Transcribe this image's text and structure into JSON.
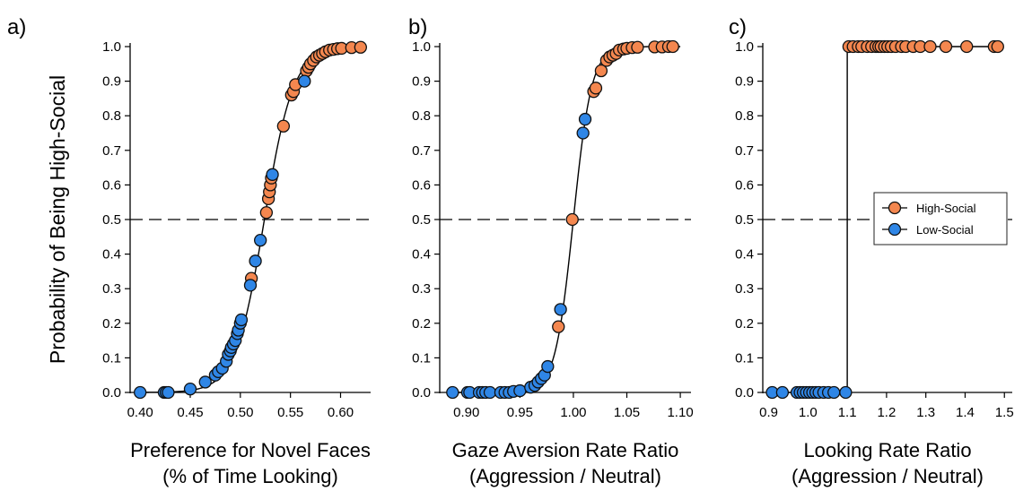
{
  "ylabel": "Probability of Being High-Social",
  "legend": {
    "placement": "right-middle of panel c",
    "items": [
      {
        "label": "High-Social",
        "color": "#F4874F"
      },
      {
        "label": "Low-Social",
        "color": "#2F86E6"
      }
    ]
  },
  "chart_data": [
    {
      "type": "scatter",
      "panel_label": "a)",
      "xlabel": [
        "Preference for Novel Faces",
        "(% of Time Looking)"
      ],
      "ylabel": "Probability of Being High-Social",
      "xlim": [
        0.39,
        0.63
      ],
      "ylim": [
        0,
        1
      ],
      "xticks": [
        "0.40",
        "0.45",
        "0.50",
        "0.55",
        "0.60"
      ],
      "yticks": [
        "0.0",
        "0.1",
        "0.2",
        "0.3",
        "0.4",
        "0.5",
        "0.6",
        "0.7",
        "0.8",
        "0.9",
        "1.0"
      ],
      "reference_line_y": 0.5,
      "curve": {
        "type": "logistic",
        "midpoint": 0.524,
        "slope": 0.0145,
        "x_range": [
          0.4,
          0.62
        ]
      },
      "series": [
        {
          "name": "High-Social",
          "color": "#F4874F",
          "points": [
            [
              0.511,
              0.33
            ],
            [
              0.526,
              0.52
            ],
            [
              0.528,
              0.56
            ],
            [
              0.529,
              0.58
            ],
            [
              0.53,
              0.6
            ],
            [
              0.531,
              0.62
            ],
            [
              0.543,
              0.77
            ],
            [
              0.551,
              0.86
            ],
            [
              0.553,
              0.87
            ],
            [
              0.555,
              0.89
            ],
            [
              0.566,
              0.93
            ],
            [
              0.568,
              0.94
            ],
            [
              0.57,
              0.95
            ],
            [
              0.573,
              0.96
            ],
            [
              0.576,
              0.97
            ],
            [
              0.579,
              0.975
            ],
            [
              0.582,
              0.98
            ],
            [
              0.585,
              0.985
            ],
            [
              0.589,
              0.99
            ],
            [
              0.593,
              0.992
            ],
            [
              0.597,
              0.994
            ],
            [
              0.601,
              0.995
            ],
            [
              0.611,
              0.997
            ],
            [
              0.62,
              0.998
            ]
          ]
        },
        {
          "name": "Low-Social",
          "color": "#2F86E6",
          "points": [
            [
              0.4,
              0.0
            ],
            [
              0.424,
              0.0
            ],
            [
              0.426,
              0.0
            ],
            [
              0.428,
              0.0
            ],
            [
              0.45,
              0.01
            ],
            [
              0.465,
              0.03
            ],
            [
              0.475,
              0.05
            ],
            [
              0.478,
              0.06
            ],
            [
              0.482,
              0.07
            ],
            [
              0.486,
              0.09
            ],
            [
              0.488,
              0.11
            ],
            [
              0.49,
              0.12
            ],
            [
              0.491,
              0.13
            ],
            [
              0.493,
              0.14
            ],
            [
              0.495,
              0.15
            ],
            [
              0.497,
              0.17
            ],
            [
              0.498,
              0.18
            ],
            [
              0.5,
              0.2
            ],
            [
              0.501,
              0.21
            ],
            [
              0.51,
              0.31
            ],
            [
              0.515,
              0.38
            ],
            [
              0.52,
              0.44
            ],
            [
              0.532,
              0.63
            ],
            [
              0.564,
              0.9
            ]
          ]
        }
      ]
    },
    {
      "type": "scatter",
      "panel_label": "b)",
      "xlabel": [
        "Gaze Aversion Rate Ratio",
        "(Aggression / Neutral)"
      ],
      "ylabel": "Probability of Being High-Social",
      "xlim": [
        0.875,
        1.11
      ],
      "ylim": [
        0,
        1
      ],
      "xticks": [
        "0.90",
        "0.95",
        "1.00",
        "1.05",
        "1.10"
      ],
      "yticks": [
        "0.0",
        "0.1",
        "0.2",
        "0.3",
        "0.4",
        "0.5",
        "0.6",
        "0.7",
        "0.8",
        "0.9",
        "1.0"
      ],
      "reference_line_y": 0.5,
      "curve": {
        "type": "logistic",
        "midpoint": 1.0,
        "slope": 0.0085,
        "x_range": [
          0.885,
          1.1
        ]
      },
      "series": [
        {
          "name": "High-Social",
          "color": "#F4874F",
          "points": [
            [
              0.986,
              0.19
            ],
            [
              0.999,
              0.5
            ],
            [
              1.019,
              0.87
            ],
            [
              1.021,
              0.88
            ],
            [
              1.026,
              0.93
            ],
            [
              1.031,
              0.96
            ],
            [
              1.034,
              0.97
            ],
            [
              1.037,
              0.975
            ],
            [
              1.04,
              0.98
            ],
            [
              1.043,
              0.99
            ],
            [
              1.047,
              0.993
            ],
            [
              1.05,
              0.995
            ],
            [
              1.055,
              0.997
            ],
            [
              1.06,
              0.998
            ],
            [
              1.076,
              0.999
            ],
            [
              1.083,
              0.999
            ],
            [
              1.089,
              1.0
            ],
            [
              1.093,
              1.0
            ]
          ]
        },
        {
          "name": "Low-Social",
          "color": "#2F86E6",
          "points": [
            [
              0.887,
              0.0
            ],
            [
              0.901,
              0.0
            ],
            [
              0.903,
              0.0
            ],
            [
              0.912,
              0.0
            ],
            [
              0.915,
              0.0
            ],
            [
              0.918,
              0.0
            ],
            [
              0.922,
              0.0
            ],
            [
              0.932,
              0.0
            ],
            [
              0.936,
              0.0
            ],
            [
              0.94,
              0.0
            ],
            [
              0.944,
              0.003
            ],
            [
              0.95,
              0.005
            ],
            [
              0.96,
              0.015
            ],
            [
              0.964,
              0.02
            ],
            [
              0.967,
              0.03
            ],
            [
              0.97,
              0.04
            ],
            [
              0.973,
              0.05
            ],
            [
              0.976,
              0.075
            ],
            [
              0.988,
              0.24
            ],
            [
              1.009,
              0.75
            ],
            [
              1.011,
              0.79
            ]
          ]
        }
      ]
    },
    {
      "type": "scatter",
      "panel_label": "c)",
      "xlabel": [
        "Looking Rate Ratio",
        "(Aggression / Neutral)"
      ],
      "ylabel": "Probability of Being High-Social",
      "xlim": [
        0.885,
        1.52
      ],
      "ylim": [
        0,
        1
      ],
      "xticks": [
        "0.9",
        "1.0",
        "1.1",
        "1.2",
        "1.3",
        "1.4",
        "1.5"
      ],
      "yticks": [
        "0.0",
        "0.1",
        "0.2",
        "0.3",
        "0.4",
        "0.5",
        "0.6",
        "0.7",
        "0.8",
        "0.9",
        "1.0"
      ],
      "reference_line_y": 0.5,
      "curve": {
        "type": "step",
        "threshold": 1.1,
        "x_range": [
          0.9,
          1.49
        ]
      },
      "series": [
        {
          "name": "High-Social",
          "color": "#F4874F",
          "points": [
            [
              1.104,
              1.0
            ],
            [
              1.115,
              1.0
            ],
            [
              1.128,
              1.0
            ],
            [
              1.137,
              1.0
            ],
            [
              1.151,
              1.0
            ],
            [
              1.162,
              1.0
            ],
            [
              1.173,
              1.0
            ],
            [
              1.18,
              1.0
            ],
            [
              1.186,
              1.0
            ],
            [
              1.195,
              1.0
            ],
            [
              1.203,
              1.0
            ],
            [
              1.212,
              1.0
            ],
            [
              1.223,
              1.0
            ],
            [
              1.238,
              1.0
            ],
            [
              1.249,
              1.0
            ],
            [
              1.268,
              1.0
            ],
            [
              1.286,
              1.0
            ],
            [
              1.311,
              1.0
            ],
            [
              1.351,
              1.0
            ],
            [
              1.404,
              1.0
            ],
            [
              1.474,
              1.0
            ],
            [
              1.483,
              1.0
            ]
          ]
        },
        {
          "name": "Low-Social",
          "color": "#2F86E6",
          "points": [
            [
              0.909,
              0.0
            ],
            [
              0.935,
              0.0
            ],
            [
              0.972,
              0.0
            ],
            [
              0.98,
              0.0
            ],
            [
              0.988,
              0.0
            ],
            [
              0.996,
              0.0
            ],
            [
              1.004,
              0.0
            ],
            [
              1.012,
              0.0
            ],
            [
              1.02,
              0.0
            ],
            [
              1.028,
              0.0
            ],
            [
              1.04,
              0.0
            ],
            [
              1.052,
              0.0
            ],
            [
              1.066,
              0.0
            ],
            [
              1.096,
              0.0
            ]
          ]
        }
      ]
    }
  ]
}
